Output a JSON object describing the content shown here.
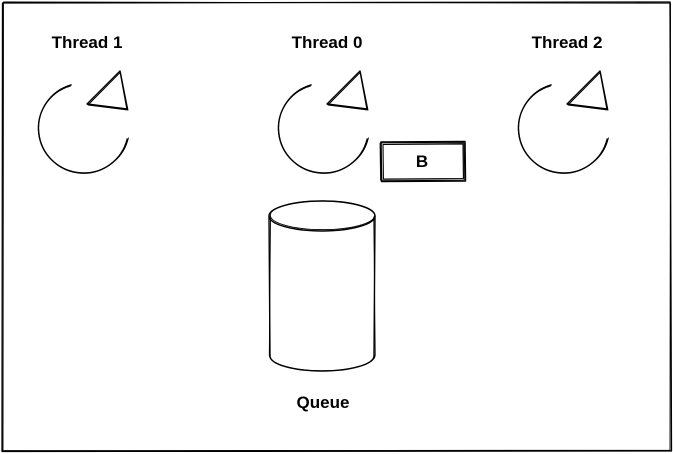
{
  "diagram": {
    "threads": [
      {
        "id": "thread-1",
        "label": "Thread 1"
      },
      {
        "id": "thread-0",
        "label": "Thread 0"
      },
      {
        "id": "thread-2",
        "label": "Thread 2"
      }
    ],
    "task_box": {
      "label": "B"
    },
    "queue": {
      "label": "Queue"
    }
  },
  "colors": {
    "stroke": "#000000",
    "background": "#ffffff"
  }
}
